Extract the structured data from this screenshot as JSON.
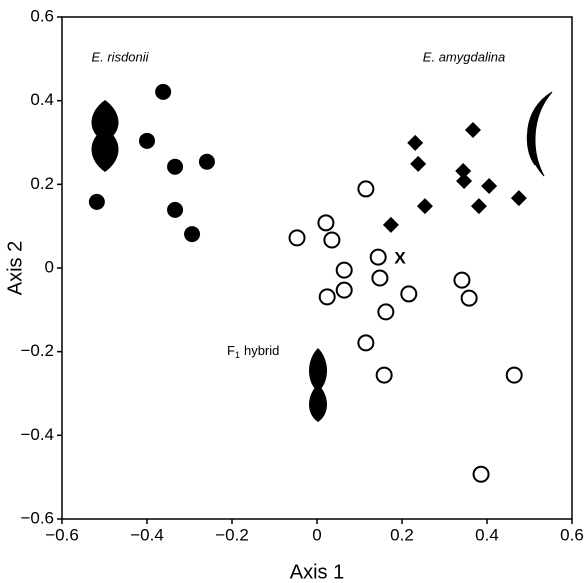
{
  "chart_data": {
    "type": "scatter",
    "xlabel": "Axis 1",
    "ylabel": "Axis 2",
    "xlim": [
      -0.6,
      0.6
    ],
    "ylim": [
      -0.6,
      0.6
    ],
    "xticks": [
      {
        "value": -0.6,
        "label": "−0.6"
      },
      {
        "value": -0.4,
        "label": "−0.4"
      },
      {
        "value": -0.2,
        "label": "−0.2"
      },
      0,
      0.2,
      0.4,
      0.6
    ],
    "yticks": [
      {
        "value": -0.6,
        "label": "−0.6"
      },
      {
        "value": -0.4,
        "label": "−0.4"
      },
      {
        "value": -0.2,
        "label": "−0.2"
      },
      0,
      0.2,
      0.4,
      0.6
    ],
    "series": [
      {
        "name": "E. risdonii",
        "marker": "filled-circle",
        "color": "#000000",
        "x": [
          -0.362,
          -0.4,
          -0.334,
          -0.259,
          -0.334,
          -0.294,
          -0.518
        ],
        "values": [
          0.421,
          0.304,
          0.242,
          0.254,
          0.139,
          0.081,
          0.158
        ]
      },
      {
        "name": "E. amygdalina",
        "marker": "diamond",
        "color": "#000000",
        "x": [
          0.231,
          0.367,
          0.238,
          0.344,
          0.346,
          0.405,
          0.475,
          0.254,
          0.174,
          0.381
        ],
        "values": [
          0.299,
          0.33,
          0.249,
          0.232,
          0.208,
          0.196,
          0.167,
          0.148,
          0.103,
          0.148
        ]
      },
      {
        "marker": "open-circle",
        "color": "#000000",
        "x": [
          0.115,
          -0.047,
          0.021,
          0.035,
          0.064,
          0.064,
          0.024,
          0.144,
          0.148,
          0.162,
          0.216,
          0.341,
          0.358,
          0.115,
          0.158,
          0.464,
          0.386
        ],
        "values": [
          0.189,
          0.072,
          0.108,
          0.067,
          -0.005,
          -0.053,
          -0.069,
          0.026,
          -0.024,
          -0.105,
          -0.062,
          -0.029,
          -0.072,
          -0.179,
          -0.256,
          -0.256,
          -0.493
        ]
      }
    ],
    "annotations": {
      "x_mark": "X",
      "hybrid": {
        "main": "F",
        "sub": "1",
        "rest": "hybrid"
      }
    }
  }
}
